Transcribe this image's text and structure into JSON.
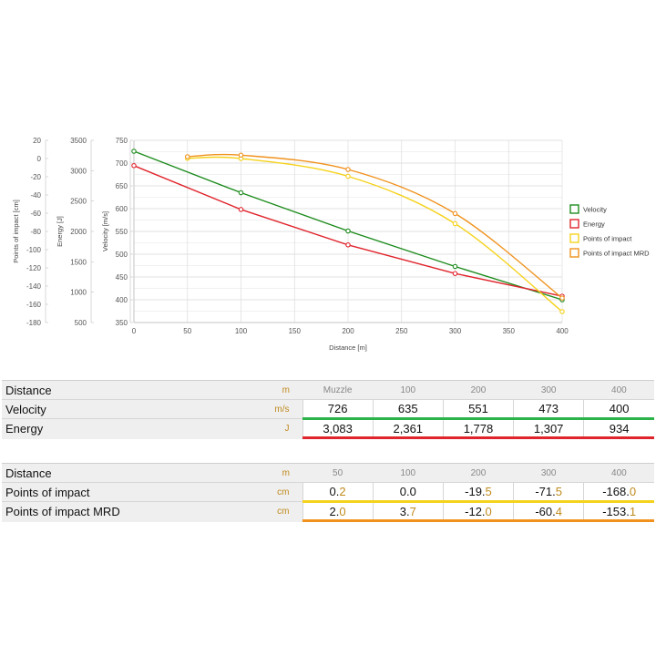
{
  "chart_data": {
    "type": "line",
    "x": [
      0,
      50,
      100,
      200,
      300,
      400
    ],
    "xlabel": "Distance [m]",
    "xticks": [
      "0",
      "50",
      "100",
      "150",
      "200",
      "250",
      "300",
      "350",
      "400"
    ],
    "xlim": [
      0,
      400
    ],
    "grid": true,
    "legend_position": "right",
    "axes": {
      "impact": {
        "label": "Points of impact [cm]",
        "ticks": [
          "20",
          "0",
          "-20",
          "-40",
          "-60",
          "-80",
          "-100",
          "-120",
          "-140",
          "-160",
          "-180"
        ],
        "range": [
          -180,
          20
        ]
      },
      "energy": {
        "label": "Energy [J]",
        "ticks": [
          "3500",
          "3000",
          "2500",
          "2000",
          "1500",
          "1000",
          "500"
        ],
        "range": [
          500,
          3500
        ]
      },
      "velocity": {
        "label": "Velocity [m/s]",
        "ticks": [
          "750",
          "700",
          "650",
          "600",
          "550",
          "500",
          "450",
          "400",
          "350"
        ],
        "range": [
          350,
          750
        ]
      }
    },
    "series": [
      {
        "name": "Velocity",
        "color": "#1e8c1e",
        "axis": "velocity",
        "x": [
          0,
          100,
          200,
          300,
          400
        ],
        "values": [
          726,
          635,
          551,
          473,
          400
        ]
      },
      {
        "name": "Energy",
        "color": "#e0242c",
        "axis": "energy",
        "x": [
          0,
          100,
          200,
          300,
          400
        ],
        "values": [
          3083,
          2361,
          1778,
          1307,
          934
        ]
      },
      {
        "name": "Points of impact",
        "color": "#f5d21c",
        "axis": "impact",
        "x": [
          50,
          100,
          200,
          300,
          400
        ],
        "values": [
          0.2,
          0.0,
          -19.5,
          -71.5,
          -168.0
        ]
      },
      {
        "name": "Points of impact MRD",
        "color": "#f0921d",
        "axis": "impact",
        "x": [
          50,
          100,
          200,
          300,
          400
        ],
        "values": [
          2.0,
          3.7,
          -12.0,
          -60.4,
          -153.1
        ]
      }
    ]
  },
  "table1": {
    "header": {
      "label": "Distance",
      "unit": "m",
      "cols": [
        "Muzzle",
        "100",
        "200",
        "300",
        "400"
      ]
    },
    "rows": [
      {
        "label": "Velocity",
        "unit": "m/s",
        "values": [
          "726",
          "635",
          "551",
          "473",
          "400"
        ]
      },
      {
        "label": "Energy",
        "unit": "J",
        "values": [
          "3,083",
          "2,361",
          "1,778",
          "1,307",
          "934"
        ]
      }
    ]
  },
  "table2": {
    "header": {
      "label": "Distance",
      "unit": "m",
      "cols": [
        "50",
        "100",
        "200",
        "300",
        "400"
      ]
    },
    "rows": [
      {
        "label": "Points of impact",
        "unit": "cm",
        "values": [
          {
            "int": "0.",
            "dec": "2"
          },
          {
            "int": "0.",
            "dec": "0"
          },
          {
            "int": "-19.",
            "dec": "5"
          },
          {
            "int": "-71.",
            "dec": "5"
          },
          {
            "int": "-168.",
            "dec": "0"
          }
        ]
      },
      {
        "label": "Points of impact MRD",
        "unit": "cm",
        "values": [
          {
            "int": "2.",
            "dec": "0"
          },
          {
            "int": "3.",
            "dec": "7"
          },
          {
            "int": "-12.",
            "dec": "0"
          },
          {
            "int": "-60.",
            "dec": "4"
          },
          {
            "int": "-153.",
            "dec": "1"
          }
        ]
      }
    ]
  }
}
